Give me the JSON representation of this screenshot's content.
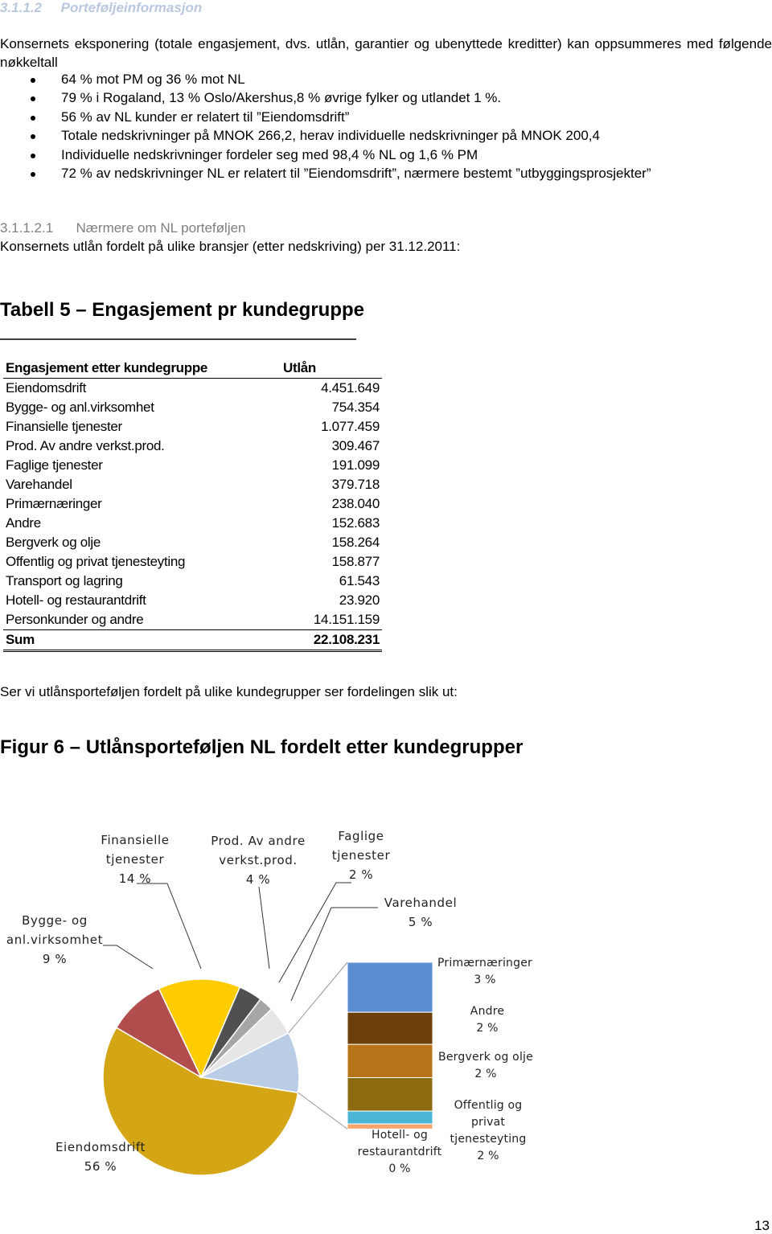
{
  "heading": {
    "number": "3.1.1.2",
    "title": "Porteføljeinformasjon"
  },
  "intro": "Konsernets eksponering (totale engasjement, dvs. utlån, garantier og ubenyttede kreditter) kan oppsummeres med følgende nøkkeltall",
  "bullets": [
    "64 % mot PM og 36 % mot NL",
    "79 % i Rogaland, 13 % Oslo/Akershus,8 % øvrige fylker og utlandet 1 %.",
    "56 % av NL kunder er relatert til ”Eiendomsdrift”",
    "Totale nedskrivninger på MNOK 266,2, herav individuelle nedskrivninger på MNOK 200,4",
    "Individuelle nedskrivninger fordeler seg med 98,4 % NL og 1,6 % PM",
    "72 % av nedskrivninger NL er relatert til ”Eiendomsdrift”, nærmere bestemt ”utbyggingsprosjekter”"
  ],
  "subheading": {
    "number": "3.1.1.2.1",
    "title": "Nærmere om NL porteføljen"
  },
  "table_intro": "Konsernets utlån fordelt på ulike bransjer (etter nedskriving) per 31.12.2011:",
  "table": {
    "title": "Tabell 5 – Engasjement pr kundegruppe",
    "header": [
      "Engasjement etter kundegruppe",
      "Utlån"
    ],
    "rows": [
      [
        "Eiendomsdrift",
        "4.451.649"
      ],
      [
        "Bygge- og anl.virksomhet",
        "754.354"
      ],
      [
        "Finansielle tjenester",
        "1.077.459"
      ],
      [
        "Prod. Av andre verkst.prod.",
        "309.467"
      ],
      [
        "Faglige tjenester",
        "191.099"
      ],
      [
        "Varehandel",
        "379.718"
      ],
      [
        "Primærnæringer",
        "238.040"
      ],
      [
        "Andre",
        "152.683"
      ],
      [
        "Bergverk og olje",
        "158.264"
      ],
      [
        "Offentlig og privat tjenesteyting",
        "158.877"
      ],
      [
        "Transport og lagring",
        "61.543"
      ],
      [
        "Hotell- og restaurantdrift",
        "23.920"
      ],
      [
        "Personkunder og andre",
        "14.151.159"
      ]
    ],
    "sum": [
      "Sum",
      "22.108.231"
    ]
  },
  "figure_intro": "Ser vi utlånsporteføljen fordelt på ulike kundegrupper ser fordelingen slik ut:",
  "figure_title": "Figur 6 – Utlånsporteføljen NL fordelt etter kundegrupper",
  "chart_data": {
    "type": "bar-of-pie",
    "pie": {
      "categories": [
        "Eiendomsdrift",
        "Bygge- og anl.virksomhet",
        "Finansielle tjenester",
        "Prod. Av andre verkst.prod.",
        "Faglige tjenester",
        "Varehandel",
        null
      ],
      "values": [
        55.95,
        9.48,
        13.54,
        3.89,
        2.4,
        4.77,
        9.97
      ],
      "value_labels": [
        "56 %",
        "9 %",
        "14 %",
        "4 %",
        "2 %",
        "5 %",
        null
      ],
      "colors": [
        "#d4a514",
        "#b24d4d",
        "#ffcc00",
        "#505050",
        "#a6a6a6",
        "#e6e6e6",
        "#b9cde5"
      ]
    },
    "bar": {
      "categories": [
        "Primærnæringer",
        "Andre",
        "Bergverk og olje",
        "Offentlig og privat tjenesteyting",
        null,
        "Hotell- og restaurantdrift"
      ],
      "values": [
        2.99,
        1.92,
        1.99,
        2.0,
        0.77,
        0.3
      ],
      "value_labels": [
        "3 %",
        "2 %",
        "2 %",
        "2 %",
        null,
        "0 %"
      ],
      "colors": [
        "#5b8ed0",
        "#6b400a",
        "#b87418",
        "#8c6b10",
        "#4cb6d6",
        "#f7a46a"
      ]
    }
  },
  "page_number": "13"
}
